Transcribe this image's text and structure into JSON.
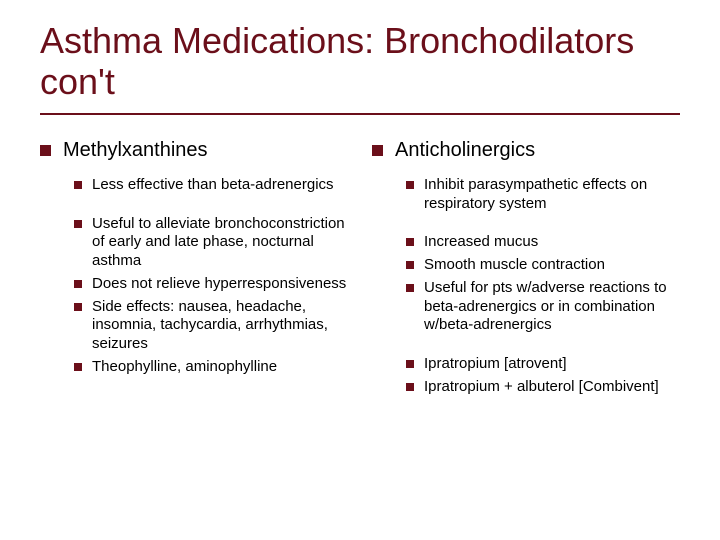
{
  "title": "Asthma Medications: Bronchodilators con't",
  "colors": {
    "accent": "#6b0f1a",
    "text": "#000000",
    "background": "#ffffff"
  },
  "fonts": {
    "title_size": 36,
    "lvl1_size": 20,
    "lvl2_size": 15,
    "family": "Arial"
  },
  "left": {
    "heading": "Methylxanthines",
    "group1": [
      "Less effective than beta-adrenergics"
    ],
    "group2": [
      "Useful to alleviate bronchoconstriction of early and late phase, nocturnal asthma",
      "Does not relieve hyperresponsiveness",
      "Side effects: nausea, headache, insomnia, tachycardia, arrhythmias, seizures",
      "Theophylline, aminophylline"
    ]
  },
  "right": {
    "heading": "Anticholinergics",
    "group1": [
      "Inhibit parasympathetic effects on respiratory system"
    ],
    "group2": [
      "Increased mucus",
      "Smooth muscle contraction",
      "Useful for pts w/adverse reactions to beta-adrenergics or in combination w/beta-adrenergics"
    ],
    "group3": [
      "Ipratropium [atrovent]",
      "Ipratropium + albuterol [Combivent]"
    ]
  }
}
